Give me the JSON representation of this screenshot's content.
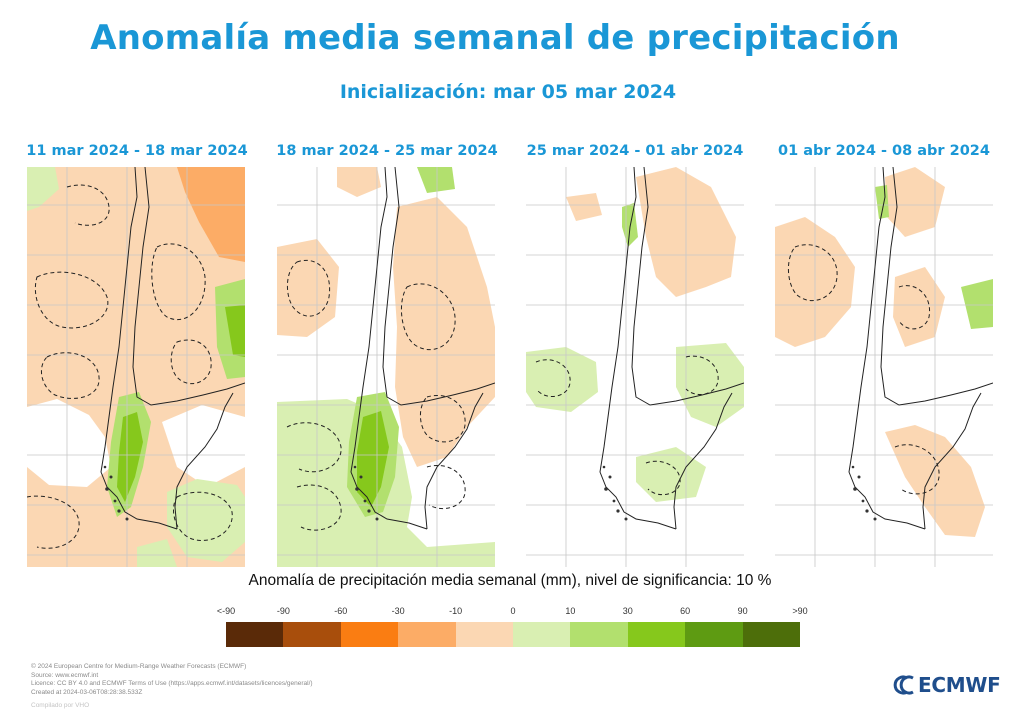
{
  "title": "Anomalía media semanal de precipitación",
  "subtitle": "Inicialización: mar 05 mar 2024",
  "panels": [
    {
      "label": "11 mar 2024 - 18 mar 2024"
    },
    {
      "label": "18 mar 2024 - 25 mar 2024"
    },
    {
      "label": "25 mar 2024 - 01 abr 2024"
    },
    {
      "label": "01 abr 2024 - 08 abr 2024"
    }
  ],
  "legend": {
    "caption": "Anomalía de precipitación media semanal (mm), nivel de significancia: 10 %",
    "labels": [
      "<-90",
      "-90",
      "-60",
      "-30",
      "-10",
      "0",
      "10",
      "30",
      "60",
      "90",
      ">90"
    ],
    "colors": [
      "#5a2a08",
      "#a84e0c",
      "#fa7d12",
      "#fcac66",
      "#fbd7b3",
      "#d9efb2",
      "#b2e06e",
      "#86c81c",
      "#5e9b12",
      "#4d6e0a"
    ]
  },
  "footer": {
    "lines": [
      "© 2024 European Centre for Medium-Range Weather Forecasts (ECMWF)",
      "Source: www.ecmwf.int",
      "Licence: CC BY 4.0 and ECMWF Terms of Use (https://apps.ecmwf.int/datasets/licences/general/)",
      "Created at 2024-03-06T08:28:38.533Z"
    ],
    "compiled": "Compilado por VHO"
  },
  "logo": {
    "text": "ECMWF",
    "icon": "ecmwf-logo-icon",
    "color": "#1f4e8c"
  }
}
